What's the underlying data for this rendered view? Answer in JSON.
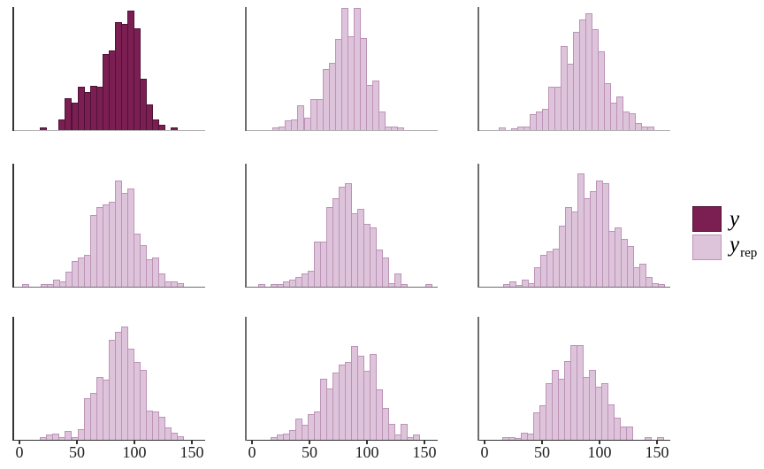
{
  "chart_data": {
    "type": "bar",
    "subtype": "histogram-grid",
    "title": "",
    "xlabel": "",
    "ylabel": "",
    "description": "3x3 grid of histograms (posterior predictive check): observed data y in dark maroon (top-left), replicated datasets y-rep in light pink; x axis labeled only on bottom row",
    "grid": "off",
    "legend_position": "right",
    "legend_entries": [
      "y",
      "y rep"
    ],
    "x_tick_values": [
      0,
      50,
      100,
      150
    ],
    "x_tick_labels": [
      "0",
      "50",
      "100",
      "150"
    ],
    "x_range": [
      0,
      168
    ],
    "bin_width_units": 5.4,
    "y_axis_note": "frequency, unlabeled relative heights 0-1",
    "panels": [
      {
        "row": 1,
        "col": 1,
        "series": "y",
        "axis_v": "dark",
        "axis_h": "light",
        "bin_start": 18,
        "heights": [
          0.02,
          0,
          0,
          0.09,
          0.26,
          0.22,
          0.35,
          0.31,
          0.36,
          0.35,
          0.62,
          0.65,
          0.88,
          0.86,
          0.97,
          0.83,
          0.42,
          0.21,
          0.09,
          0.04,
          0,
          0.02
        ]
      },
      {
        "row": 1,
        "col": 2,
        "series": "yrep",
        "axis_v": "mid",
        "axis_h": "light",
        "bin_start": 18,
        "heights": [
          0.02,
          0.03,
          0.08,
          0.09,
          0.2,
          0.1,
          0.25,
          0.25,
          0.5,
          0.55,
          0.74,
          0.99,
          0.76,
          0.99,
          0.75,
          0.37,
          0.4,
          0.15,
          0.03,
          0.03,
          0.02
        ]
      },
      {
        "row": 1,
        "col": 3,
        "series": "yrep",
        "axis_v": "mid",
        "axis_h": "light",
        "bin_start": 12,
        "heights": [
          0.02,
          0,
          0.015,
          0.03,
          0.03,
          0.13,
          0.15,
          0.17,
          0.35,
          0.35,
          0.68,
          0.54,
          0.8,
          0.9,
          0.95,
          0.82,
          0.64,
          0.38,
          0.22,
          0.27,
          0.15,
          0.14,
          0.06,
          0.03,
          0.03
        ]
      },
      {
        "row": 2,
        "col": 1,
        "series": "yrep",
        "axis_v": "dark",
        "axis_h": "mid",
        "bin_start": 2,
        "heights": [
          0.02,
          0,
          0,
          0.02,
          0.02,
          0.06,
          0.04,
          0.12,
          0.21,
          0.24,
          0.26,
          0.58,
          0.65,
          0.67,
          0.69,
          0.86,
          0.76,
          0.8,
          0.43,
          0.34,
          0.22,
          0.24,
          0.11,
          0.04,
          0.04,
          0.03
        ]
      },
      {
        "row": 2,
        "col": 2,
        "series": "yrep",
        "axis_v": "mid",
        "axis_h": "mid",
        "bin_start": 5,
        "heights": [
          0.02,
          0,
          0.02,
          0.02,
          0.04,
          0.06,
          0.08,
          0.11,
          0.13,
          0.37,
          0.37,
          0.65,
          0.72,
          0.81,
          0.84,
          0.6,
          0.63,
          0.51,
          0.48,
          0.3,
          0.24,
          0.03,
          0.11,
          0.02,
          0,
          0,
          0,
          0.02
        ]
      },
      {
        "row": 2,
        "col": 3,
        "series": "yrep",
        "axis_v": "mid",
        "axis_h": "mid",
        "bin_start": 16,
        "heights": [
          0.02,
          0.04,
          0.01,
          0.06,
          0.03,
          0.16,
          0.26,
          0.29,
          0.31,
          0.5,
          0.65,
          0.61,
          0.92,
          0.72,
          0.78,
          0.86,
          0.84,
          0.45,
          0.48,
          0.39,
          0.33,
          0.16,
          0.19,
          0.08,
          0.03,
          0.02
        ]
      },
      {
        "row": 3,
        "col": 1,
        "series": "yrep",
        "axis_v": "dark",
        "axis_h": "dark",
        "bin_start": 18,
        "heights": [
          0.02,
          0.04,
          0.05,
          0.02,
          0.07,
          0.02,
          0.09,
          0.34,
          0.38,
          0.51,
          0.49,
          0.81,
          0.88,
          0.92,
          0.74,
          0.63,
          0.57,
          0.24,
          0.23,
          0.19,
          0.1,
          0.06,
          0.03
        ]
      },
      {
        "row": 3,
        "col": 2,
        "series": "yrep",
        "axis_v": "mid",
        "axis_h": "dark",
        "bin_start": 16,
        "heights": [
          0.02,
          0.04,
          0.05,
          0.08,
          0.17,
          0.12,
          0.21,
          0.23,
          0.5,
          0.42,
          0.55,
          0.61,
          0.63,
          0.76,
          0.68,
          0.56,
          0.7,
          0.41,
          0.26,
          0.13,
          0.04,
          0.13,
          0.02,
          0.04
        ]
      },
      {
        "row": 3,
        "col": 3,
        "series": "yrep",
        "axis_v": "mid",
        "axis_h": "dark",
        "bin_start": 15,
        "heights": [
          0.02,
          0.02,
          0.01,
          0.06,
          0.05,
          0.22,
          0.28,
          0.46,
          0.57,
          0.5,
          0.64,
          0.77,
          0.77,
          0.51,
          0.57,
          0.43,
          0.46,
          0.29,
          0.18,
          0.11,
          0.11,
          0,
          0,
          0.02,
          0,
          0.02
        ]
      }
    ]
  },
  "legend": {
    "y_label": "y",
    "yrep_label_main": "y",
    "yrep_label_sub": "rep"
  },
  "colors": {
    "y_fill": "#7b1f53",
    "y_border": "#4f1136",
    "yrep_fill": "#ddc4da",
    "yrep_border": "#bd92b8",
    "axis_dark": "#333333",
    "axis_mid": "#6e6e6e",
    "axis_light": "#b3b3b3",
    "tick_label": "#1f1f1f"
  }
}
